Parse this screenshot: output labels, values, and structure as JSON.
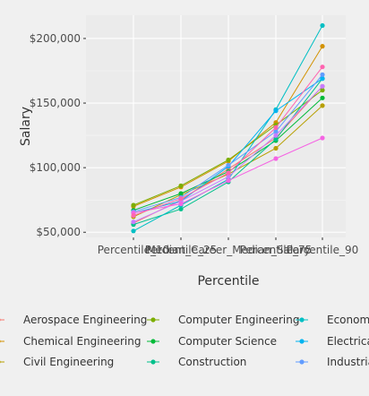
{
  "chart_data": {
    "type": "line",
    "xlabel": "Percentile",
    "ylabel": "Salary",
    "categories": [
      "Percentile_10",
      "Percentile_25",
      "Median_Career_Median_Salary",
      "Percentile_75",
      "Percentile_90"
    ],
    "y_ticks": [
      {
        "value": 50000,
        "label": "$50,000"
      },
      {
        "value": 100000,
        "label": "$100,000"
      },
      {
        "value": 150000,
        "label": "$150,000"
      },
      {
        "value": 200000,
        "label": "$200,000"
      }
    ],
    "ylim": [
      46000,
      218000
    ],
    "grid": true,
    "legend_position": "bottom",
    "series": [
      {
        "name": "Aerospace Engineering",
        "color": "#f8766d",
        "values": [
          57000,
          75000,
          99000,
          123000,
          163000
        ]
      },
      {
        "name": "Chemical Engineering",
        "color": "#d39200",
        "values": [
          70000,
          85000,
          105000,
          135000,
          194000
        ]
      },
      {
        "name": "Civil Engineering",
        "color": "#b79f00",
        "values": [
          62000,
          79000,
          95000,
          115000,
          148000
        ]
      },
      {
        "name": "Computer Engineering",
        "color": "#7cae00",
        "values": [
          71000,
          86000,
          106000,
          133000,
          160000
        ]
      },
      {
        "name": "Computer Science",
        "color": "#00ba38",
        "values": [
          67000,
          80000,
          97000,
          121000,
          154000
        ]
      },
      {
        "name": "Construction",
        "color": "#00c08b",
        "values": [
          56000,
          68000,
          89000,
          122000,
          169000
        ]
      },
      {
        "name": "Economics",
        "color": "#00bfc4",
        "values": [
          51000,
          71000,
          91000,
          145000,
          210000
        ]
      },
      {
        "name": "Electrical Engineering",
        "color": "#00b4f0",
        "values": [
          65000,
          74000,
          101000,
          144000,
          169000
        ]
      },
      {
        "name": "Industrial Engineering",
        "color": "#619cff",
        "values": [
          66000,
          77000,
          102000,
          128000,
          172000
        ]
      },
      {
        "name": "",
        "color": "#c77cff",
        "values": [
          58000,
          74000,
          93000,
          125000,
          163000
        ]
      },
      {
        "name": "",
        "color": "#f564e3",
        "values": [
          65000,
          72000,
          90000,
          107000,
          123000
        ]
      },
      {
        "name": "",
        "color": "#ff64b0",
        "values": [
          63000,
          76000,
          96000,
          131000,
          178000
        ]
      }
    ],
    "legend_columns": [
      [
        "Aerospace Engineering",
        "Chemical Engineering",
        "Civil Engineering"
      ],
      [
        "Computer Engineering",
        "Computer Science",
        "Construction"
      ],
      [
        "Economics",
        "Electrical Engineering",
        "Industrial Engineering"
      ]
    ]
  }
}
